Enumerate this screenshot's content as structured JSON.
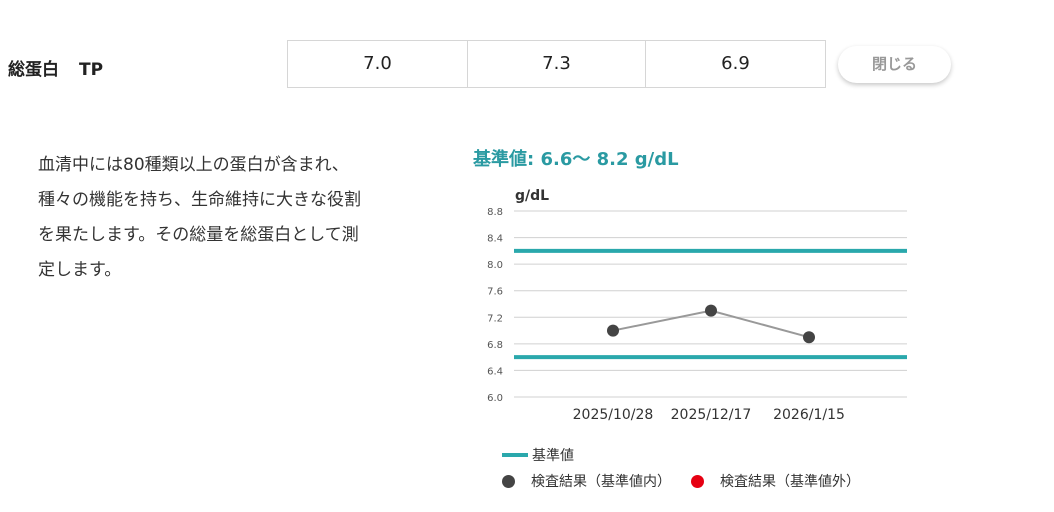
{
  "item": {
    "name": "総蛋白",
    "code": "TP"
  },
  "results": [
    "7.0",
    "7.3",
    "6.9"
  ],
  "close_label": "閉じる",
  "description": [
    "血清中には80種類以上の蛋白が含まれ、",
    "種々の機能を持ち、生命維持に大きな役割",
    "を果たします。その総量を総蛋白として測",
    "定します。"
  ],
  "reference_heading": "基準値: 6.6〜 8.2 g/dL",
  "legend": {
    "reference": "基準値",
    "within": "検査結果（基準値内）",
    "outside": "検査結果（基準値外）"
  },
  "colors": {
    "reference_line": "#2aa8ac",
    "within": "#444444",
    "outside": "#e60012",
    "heading": "#2a9aa2",
    "connector": "#999999"
  },
  "chart_data": {
    "type": "line",
    "ylabel": "g/dL",
    "ylim": [
      6.0,
      8.8
    ],
    "yticks": [
      "6.0",
      "6.4",
      "6.8",
      "7.2",
      "7.6",
      "8.0",
      "8.4",
      "8.8"
    ],
    "categories": [
      "2025/10/28",
      "2025/12/17",
      "2026/1/15"
    ],
    "values": [
      7.0,
      7.3,
      6.9
    ],
    "reference_range": [
      6.6,
      8.2
    ],
    "grid": true
  }
}
